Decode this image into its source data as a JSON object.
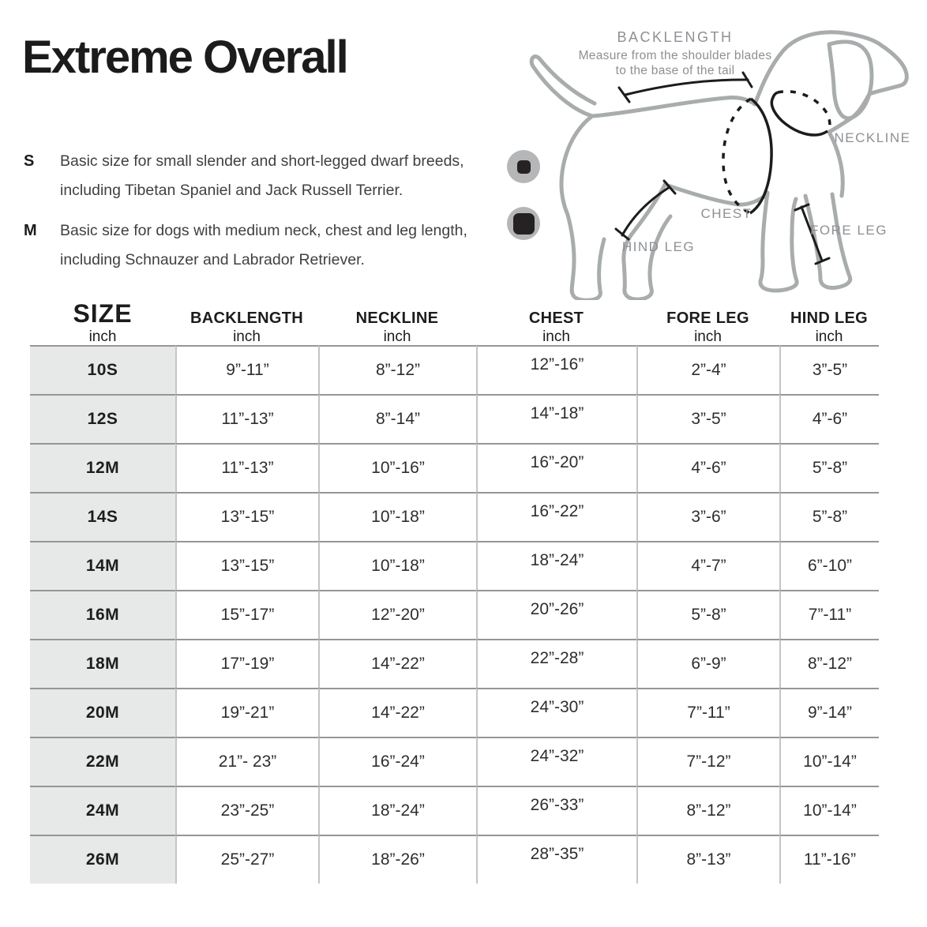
{
  "title": "Extreme Overall",
  "legend": [
    {
      "key": "S",
      "line1": "Basic size for small slender and short-legged dwarf breeds,",
      "line2": "including Tibetan Spaniel and Jack Russell Terrier."
    },
    {
      "key": "M",
      "line1": "Basic size for dogs with medium neck, chest and leg length,",
      "line2": "including Schnauzer and Labrador Retriever."
    }
  ],
  "diagram": {
    "backlength_label": "BACKLENGTH",
    "backlength_desc1": "Measure from the shoulder blades",
    "backlength_desc2": "to the base of the tail",
    "neckline_label": "NECKLINE",
    "chest_label": "CHEST",
    "foreleg_label": "FORE LEG",
    "hindleg_label": "HIND LEG"
  },
  "table": {
    "headers": [
      {
        "label": "SIZE",
        "unit": "inch"
      },
      {
        "label": "BACKLENGTH",
        "unit": "inch"
      },
      {
        "label": "NECKLINE",
        "unit": "inch"
      },
      {
        "label": "CHEST",
        "unit": "inch"
      },
      {
        "label": "FORE LEG",
        "unit": "inch"
      },
      {
        "label": "HIND LEG",
        "unit": "inch"
      }
    ],
    "rows": [
      {
        "size": "10S",
        "values": [
          "9”-11”",
          "8”-12”",
          "12”-16”",
          "2”-4”",
          "3”-5”"
        ]
      },
      {
        "size": "12S",
        "values": [
          "11”-13”",
          "8”-14”",
          "14”-18”",
          "3”-5”",
          "4”-6”"
        ]
      },
      {
        "size": "12M",
        "values": [
          "11”-13”",
          "10”-16”",
          "16”-20”",
          "4”-6”",
          "5”-8”"
        ]
      },
      {
        "size": "14S",
        "values": [
          "13”-15”",
          "10”-18”",
          "16”-22”",
          "3”-6”",
          "5”-8”"
        ]
      },
      {
        "size": "14M",
        "values": [
          "13”-15”",
          "10”-18”",
          "18”-24”",
          "4”-7”",
          "6”-10”"
        ]
      },
      {
        "size": "16M",
        "values": [
          "15”-17”",
          "12”-20”",
          "20”-26”",
          "5”-8”",
          "7”-11”"
        ]
      },
      {
        "size": "18M",
        "values": [
          "17”-19”",
          "14”-22”",
          "22”-28”",
          "6”-9”",
          "8”-12”"
        ]
      },
      {
        "size": "20M",
        "values": [
          "19”-21”",
          "14”-22”",
          "24”-30”",
          "7”-11”",
          "9”-14”"
        ]
      },
      {
        "size": "22M",
        "values": [
          "21”- 23”",
          "16”-24”",
          "24”-32”",
          "7”-12”",
          "10”-14”"
        ]
      },
      {
        "size": "24M",
        "values": [
          "23”-25”",
          "18”-24”",
          "26”-33”",
          "8”-12”",
          "10”-14”"
        ]
      },
      {
        "size": "26M",
        "values": [
          "25”-27”",
          "18”-26”",
          "28”-35”",
          "8”-13”",
          "11”-16”"
        ]
      }
    ]
  },
  "colors": {
    "size_column_bg": "#e7e8e8",
    "row_border": "#949698",
    "column_border": "#c3c5c6",
    "dog_outline_gray": "#a9acad",
    "diagram_label_gray": "#8d9093",
    "measure_line_black": "#1c1c1c",
    "icon_circle_gray": "#b4b6b8",
    "icon_square_dark": "#262223",
    "text_dark": "#1b1b1b"
  }
}
